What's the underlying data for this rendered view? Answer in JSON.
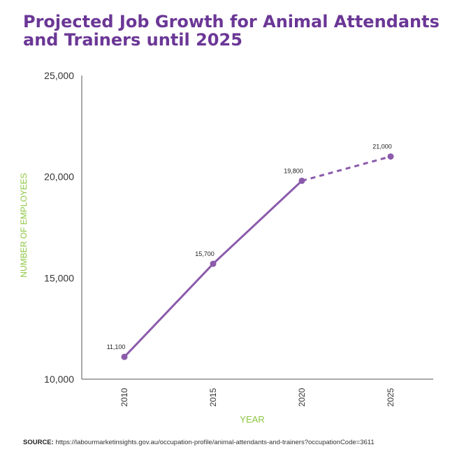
{
  "title": "Projected Job Growth for Animal Attendants and Trainers until 2025",
  "source": {
    "label": "SOURCE:",
    "text": "https://labourmarketinsights.gov.au/occupation-profile/animal-attendants-and-trainers?occupationCode=3611"
  },
  "colors": {
    "title": "#6b3796",
    "series": "#8b5bab",
    "axis_title": "#8cc63f",
    "axis": "#333333"
  },
  "chart_data": {
    "type": "line",
    "title": "Projected Job Growth for Animal Attendants and Trainers until 2025",
    "xlabel": "YEAR",
    "ylabel": "NUMBER OF EMPLOYEES",
    "x": [
      "2010",
      "2015",
      "2020",
      "2025"
    ],
    "ylim": [
      10000,
      25000
    ],
    "yticks": [
      10000,
      15000,
      20000,
      25000
    ],
    "ytick_labels": [
      "10,000",
      "15,000",
      "20,000",
      "25,000"
    ],
    "grid": false,
    "series": [
      {
        "values": [
          11100,
          15700,
          19800,
          21000
        ],
        "data_labels": [
          "11,100",
          "15,700",
          "19,800",
          "21,000"
        ],
        "segment_styles": [
          "solid",
          "solid",
          "dashed"
        ]
      }
    ]
  }
}
